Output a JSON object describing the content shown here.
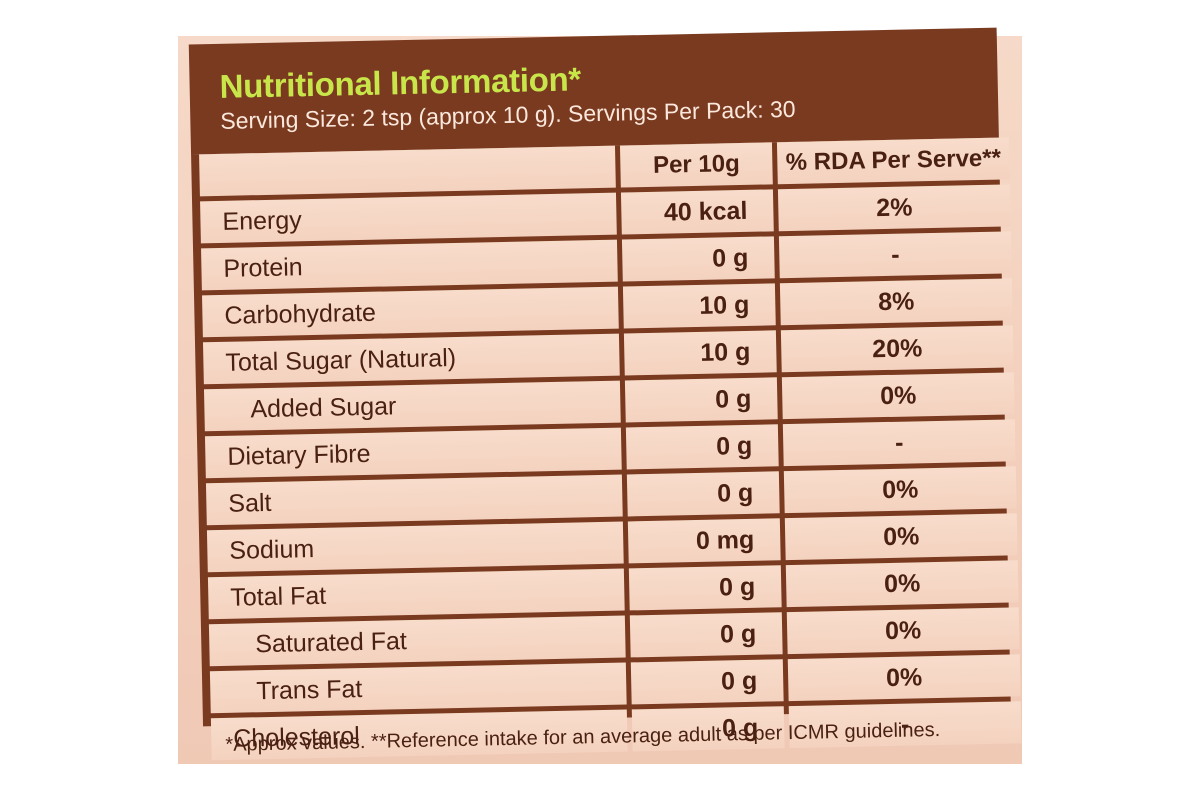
{
  "label": {
    "title": "Nutritional Information*",
    "serving": "Serving Size: 2 tsp (approx 10 g). Servings Per Pack: 30",
    "columns": [
      "",
      "Per 10g",
      "% RDA Per Serve**"
    ],
    "rows": [
      {
        "nutrient": "Energy",
        "value": "40 kcal",
        "rda": "2%",
        "indent": false
      },
      {
        "nutrient": "Protein",
        "value": "0 g",
        "rda": "-",
        "indent": false
      },
      {
        "nutrient": "Carbohydrate",
        "value": "10 g",
        "rda": "8%",
        "indent": false
      },
      {
        "nutrient": "Total Sugar (Natural)",
        "value": "10 g",
        "rda": "20%",
        "indent": false
      },
      {
        "nutrient": "Added Sugar",
        "value": "0 g",
        "rda": "0%",
        "indent": true
      },
      {
        "nutrient": "Dietary Fibre",
        "value": "0 g",
        "rda": "-",
        "indent": false
      },
      {
        "nutrient": "Salt",
        "value": "0 g",
        "rda": "0%",
        "indent": false
      },
      {
        "nutrient": "Sodium",
        "value": "0 mg",
        "rda": "0%",
        "indent": false
      },
      {
        "nutrient": "Total Fat",
        "value": "0 g",
        "rda": "0%",
        "indent": false
      },
      {
        "nutrient": "Saturated Fat",
        "value": "0 g",
        "rda": "0%",
        "indent": true
      },
      {
        "nutrient": "Trans Fat",
        "value": "0 g",
        "rda": "0%",
        "indent": true
      },
      {
        "nutrient": "Cholesterol",
        "value": "0 g",
        "rda": "-",
        "indent": false
      }
    ],
    "footnote": "*Approx values. **Reference intake for an average adult as per ICMR guidelines."
  },
  "colors": {
    "brown": "#7a3a20",
    "title_green": "#c8e64a",
    "cell_bg": "#f6d7c5",
    "text": "#4a2012"
  }
}
